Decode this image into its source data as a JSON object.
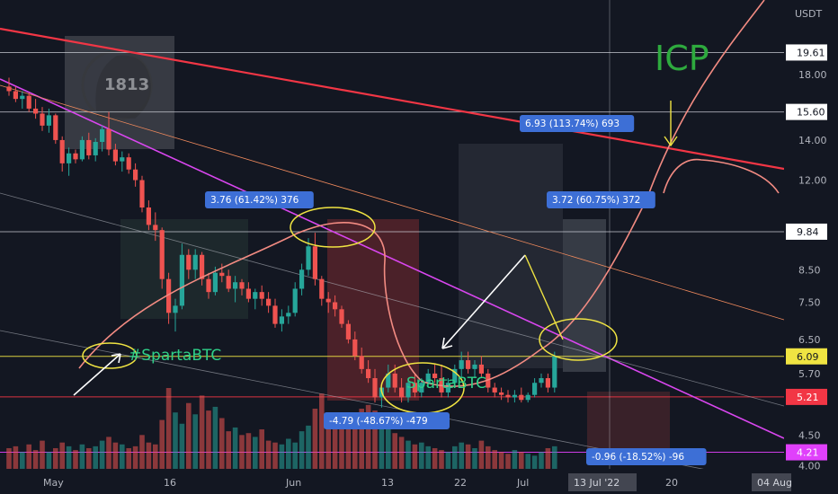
{
  "chart_data": {
    "type": "candlestick",
    "symbol_text": "ICP",
    "currency_label": "USDT",
    "watermark_text": "1813",
    "y_scale": "log",
    "ylim": [
      3.95,
      24
    ],
    "y_ticks": [
      "18.00",
      "14.00",
      "12.00",
      "8.50",
      "7.50",
      "6.50",
      "5.70",
      "4.50",
      "4.00"
    ],
    "x_ticks": [
      "May",
      "16",
      "Jun",
      "13",
      "22",
      "Jul",
      "20"
    ],
    "x_ticks_highlight": [
      "13 Jul '22",
      "04 Aug"
    ],
    "price_levels": [
      {
        "value": 19.61,
        "label": "19.61",
        "style": "white"
      },
      {
        "value": 15.6,
        "label": "15.60",
        "style": "white"
      },
      {
        "value": 9.84,
        "label": "9.84",
        "style": "white"
      },
      {
        "value": 6.09,
        "label": "6.09",
        "style": "yellow"
      },
      {
        "value": 5.21,
        "label": "5.21",
        "style": "red"
      },
      {
        "value": 4.21,
        "label": "4.21",
        "style": "magenta"
      }
    ],
    "measure_labels": [
      "3.76 (61.42%) 376",
      "-4.79 (-48.67%) -479",
      "6.93 (113.74%) 693",
      "3.72 (60.75%) 372",
      "-0.96 (-18.52%) -96"
    ],
    "annotations": [
      "#SpartaBTC",
      "SpartaBTC"
    ],
    "candles": [
      [
        17.2,
        17.8,
        16.6,
        16.9
      ],
      [
        16.9,
        17.2,
        16.2,
        16.4
      ],
      [
        16.4,
        16.9,
        15.8,
        16.6
      ],
      [
        16.6,
        16.8,
        15.6,
        15.8
      ],
      [
        15.8,
        16.4,
        15.2,
        15.5
      ],
      [
        15.5,
        15.9,
        14.5,
        14.8
      ],
      [
        14.8,
        15.8,
        14.4,
        15.4
      ],
      [
        15.4,
        15.5,
        13.8,
        14.0
      ],
      [
        14.0,
        14.2,
        12.4,
        12.8
      ],
      [
        12.8,
        13.6,
        12.2,
        13.3
      ],
      [
        13.3,
        13.5,
        12.8,
        13.0
      ],
      [
        13.0,
        14.2,
        12.9,
        14.0
      ],
      [
        14.0,
        14.4,
        13.0,
        13.2
      ],
      [
        13.2,
        14.1,
        12.9,
        13.9
      ],
      [
        13.9,
        14.8,
        13.4,
        14.6
      ],
      [
        14.6,
        15.6,
        13.2,
        13.5
      ],
      [
        13.5,
        13.8,
        12.7,
        12.9
      ],
      [
        12.9,
        13.4,
        12.4,
        13.1
      ],
      [
        13.1,
        13.3,
        12.3,
        12.5
      ],
      [
        12.5,
        12.8,
        11.7,
        12.0
      ],
      [
        12.0,
        12.2,
        10.6,
        10.8
      ],
      [
        10.8,
        11.1,
        9.9,
        10.1
      ],
      [
        10.1,
        10.6,
        9.5,
        9.9
      ],
      [
        9.9,
        10.0,
        7.9,
        8.2
      ],
      [
        8.2,
        8.4,
        6.9,
        7.2
      ],
      [
        7.2,
        7.6,
        6.7,
        7.4
      ],
      [
        7.4,
        9.4,
        7.3,
        9.0
      ],
      [
        9.0,
        9.2,
        8.2,
        8.5
      ],
      [
        8.5,
        9.2,
        8.2,
        9.0
      ],
      [
        9.0,
        9.1,
        8.0,
        8.2
      ],
      [
        8.2,
        8.4,
        7.6,
        7.8
      ],
      [
        7.8,
        8.6,
        7.7,
        8.4
      ],
      [
        8.4,
        8.7,
        8.1,
        8.3
      ],
      [
        8.3,
        8.5,
        7.8,
        7.9
      ],
      [
        7.9,
        8.3,
        7.5,
        8.1
      ],
      [
        8.1,
        8.2,
        7.7,
        7.9
      ],
      [
        7.9,
        8.1,
        7.5,
        7.6
      ],
      [
        7.6,
        7.9,
        7.3,
        7.8
      ],
      [
        7.8,
        8.0,
        7.4,
        7.6
      ],
      [
        7.6,
        7.8,
        7.2,
        7.4
      ],
      [
        7.4,
        7.6,
        6.8,
        6.9
      ],
      [
        6.9,
        7.3,
        6.7,
        7.1
      ],
      [
        7.1,
        7.4,
        6.9,
        7.2
      ],
      [
        7.2,
        8.1,
        7.1,
        7.9
      ],
      [
        7.9,
        8.7,
        7.7,
        8.5
      ],
      [
        8.5,
        9.6,
        8.3,
        9.3
      ],
      [
        9.3,
        9.8,
        8.0,
        8.2
      ],
      [
        8.2,
        8.3,
        7.4,
        7.6
      ],
      [
        7.6,
        7.8,
        7.2,
        7.5
      ],
      [
        7.5,
        7.7,
        7.1,
        7.3
      ],
      [
        7.3,
        7.4,
        6.8,
        6.9
      ],
      [
        6.9,
        7.0,
        6.4,
        6.5
      ],
      [
        6.5,
        6.7,
        6.0,
        6.1
      ],
      [
        6.1,
        6.3,
        5.7,
        5.8
      ],
      [
        5.8,
        6.0,
        5.5,
        5.6
      ],
      [
        5.6,
        5.8,
        5.1,
        5.2
      ],
      [
        5.2,
        5.5,
        5.0,
        5.4
      ],
      [
        5.4,
        5.9,
        5.3,
        5.7
      ],
      [
        5.7,
        5.9,
        5.3,
        5.4
      ],
      [
        5.4,
        5.6,
        5.1,
        5.2
      ],
      [
        5.2,
        5.6,
        5.1,
        5.5
      ],
      [
        5.5,
        5.7,
        5.2,
        5.3
      ],
      [
        5.3,
        5.6,
        5.2,
        5.5
      ],
      [
        5.5,
        5.8,
        5.4,
        5.7
      ],
      [
        5.7,
        5.9,
        5.5,
        5.6
      ],
      [
        5.6,
        5.9,
        5.2,
        5.3
      ],
      [
        5.3,
        5.6,
        5.2,
        5.5
      ],
      [
        5.5,
        5.9,
        5.4,
        5.8
      ],
      [
        5.8,
        6.2,
        5.6,
        6.0
      ],
      [
        6.0,
        6.2,
        5.7,
        5.8
      ],
      [
        5.8,
        6.0,
        5.6,
        5.9
      ],
      [
        5.9,
        6.1,
        5.6,
        5.7
      ],
      [
        5.7,
        5.8,
        5.3,
        5.4
      ],
      [
        5.4,
        5.5,
        5.2,
        5.3
      ],
      [
        5.3,
        5.4,
        5.15,
        5.25
      ],
      [
        5.25,
        5.35,
        5.1,
        5.2
      ],
      [
        5.2,
        5.35,
        5.1,
        5.25
      ],
      [
        5.25,
        5.4,
        5.1,
        5.15
      ],
      [
        5.15,
        5.3,
        5.1,
        5.25
      ],
      [
        5.25,
        5.6,
        5.2,
        5.5
      ],
      [
        5.5,
        5.7,
        5.4,
        5.6
      ],
      [
        5.6,
        5.7,
        5.3,
        5.4
      ],
      [
        5.4,
        6.2,
        5.3,
        6.1
      ]
    ],
    "volumes": [
      22,
      24,
      18,
      26,
      20,
      30,
      18,
      22,
      28,
      24,
      20,
      26,
      22,
      24,
      30,
      34,
      28,
      26,
      22,
      24,
      36,
      28,
      26,
      52,
      86,
      60,
      48,
      70,
      58,
      78,
      62,
      66,
      54,
      40,
      44,
      36,
      38,
      34,
      42,
      30,
      28,
      26,
      32,
      28,
      40,
      46,
      64,
      80,
      58,
      54,
      44,
      48,
      46,
      64,
      68,
      62,
      52,
      46,
      38,
      34,
      30,
      26,
      28,
      24,
      22,
      20,
      18,
      24,
      28,
      26,
      22,
      30,
      24,
      20,
      18,
      16,
      20,
      18,
      16,
      14,
      18,
      22,
      24
    ]
  }
}
